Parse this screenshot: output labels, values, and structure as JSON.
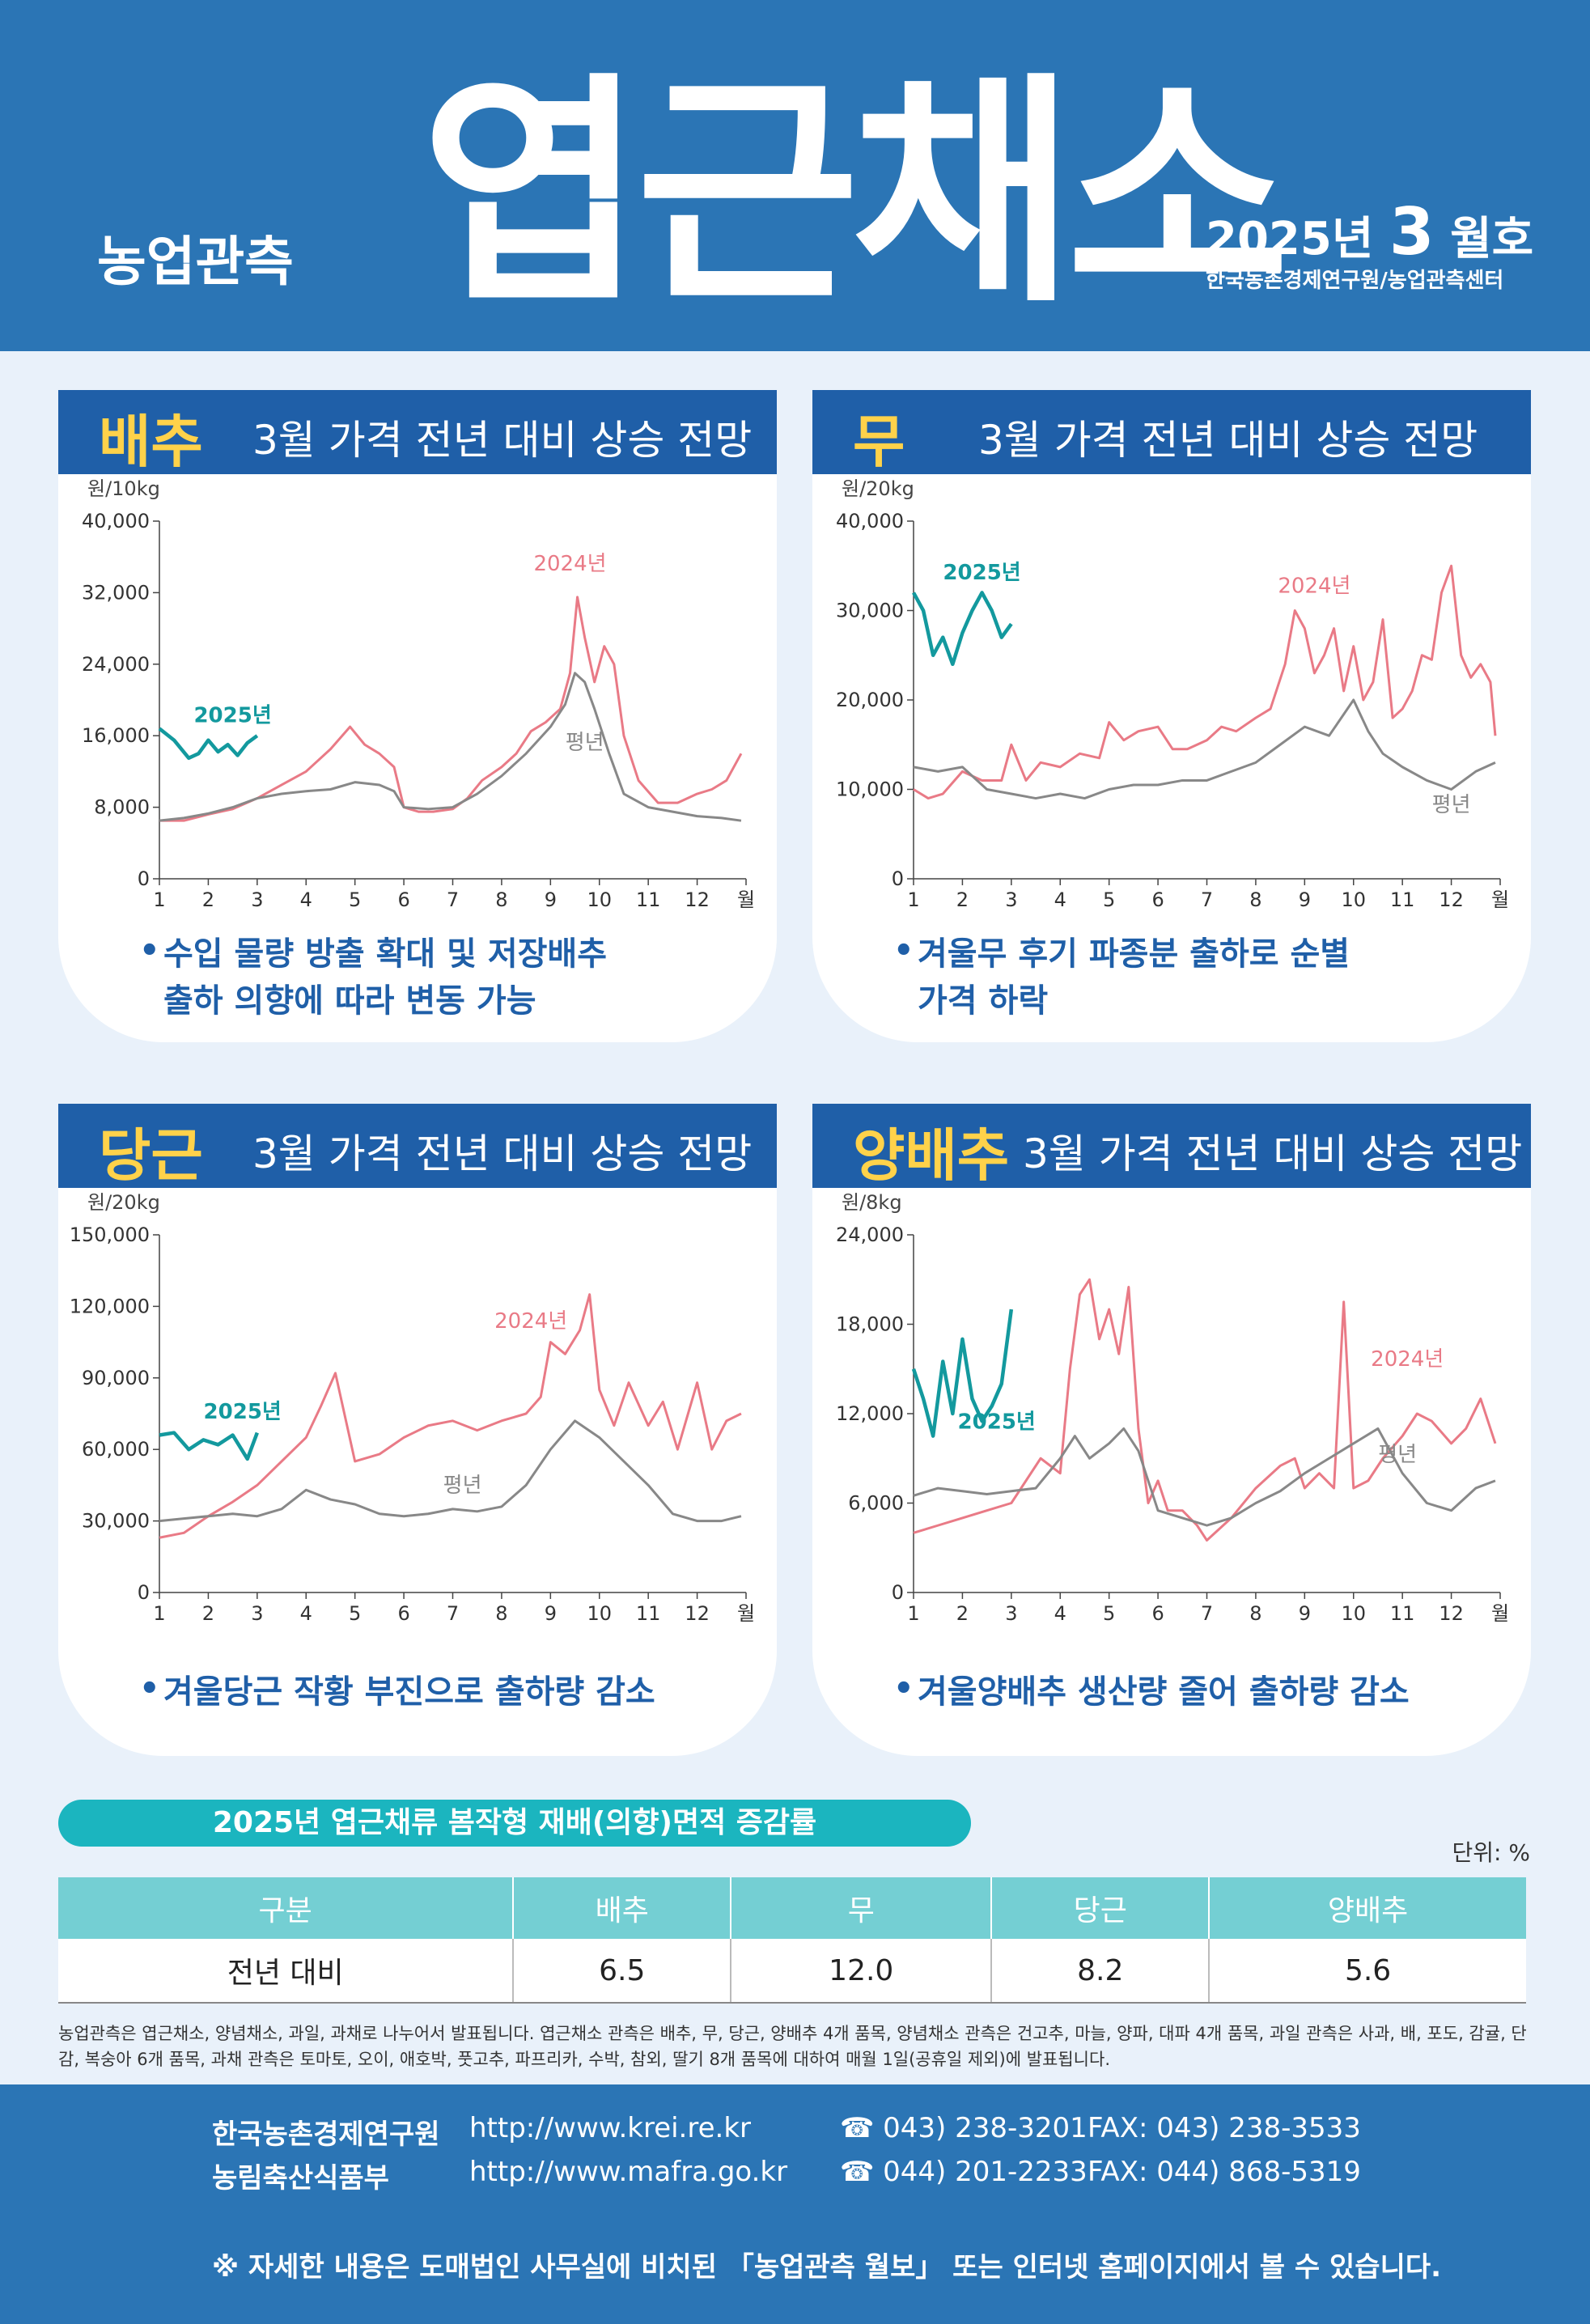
{
  "header": {
    "series": "농업관측",
    "title": "엽근채소",
    "issue_year": "2025년",
    "issue_month": "3",
    "issue_suffix": "월호",
    "org": "한국농촌경제연구원/농업관측센터"
  },
  "panels": [
    {
      "name": "배추",
      "headline": "3월 가격 전년 대비 상승 전망",
      "unit": "원/10kg",
      "note": "수입 물량 방출 확대 및 저장배추\n출하 의향에 따라 변동 가능"
    },
    {
      "name": "무",
      "headline": "3월 가격 전년 대비 상승 전망",
      "unit": "원/20kg",
      "note": "겨울무 후기 파종분 출하로 순별\n가격 하락"
    },
    {
      "name": "당근",
      "headline": "3월 가격 전년 대비 상승 전망",
      "unit": "원/20kg",
      "note": "겨울당근 작황 부진으로 출하량 감소"
    },
    {
      "name": "양배추",
      "headline": "3월 가격 전년 대비 상승 전망",
      "unit": "원/8kg",
      "note": "겨울양배추 생산량 줄어 출하량 감소"
    }
  ],
  "chart_data": [
    {
      "type": "line",
      "title": "배추",
      "ylabel": "원/10kg",
      "xlabel": "월",
      "x_ticks": [
        "1",
        "2",
        "3",
        "4",
        "5",
        "6",
        "7",
        "8",
        "9",
        "10",
        "11",
        "12",
        "월"
      ],
      "y_ticks": [
        "0",
        "8,000",
        "16,000",
        "24,000",
        "32,000",
        "40,000"
      ],
      "ylim": [
        0,
        40000
      ],
      "xlim": [
        1,
        13
      ],
      "series": [
        {
          "name": "2024년",
          "color": "#e97a86",
          "x": [
            1,
            1.5,
            2,
            2.5,
            3,
            3.5,
            4,
            4.5,
            4.9,
            5.2,
            5.5,
            5.8,
            6,
            6.3,
            6.6,
            7,
            7.3,
            7.6,
            8,
            8.3,
            8.6,
            8.9,
            9.2,
            9.4,
            9.55,
            9.7,
            9.9,
            10.1,
            10.3,
            10.5,
            10.8,
            11.2,
            11.6,
            12,
            12.3,
            12.6,
            12.9
          ],
          "y": [
            6500,
            6500,
            7200,
            7800,
            9000,
            10500,
            12000,
            14500,
            17000,
            15000,
            14000,
            12500,
            8000,
            7500,
            7500,
            7800,
            9000,
            11000,
            12500,
            14000,
            16500,
            17500,
            19000,
            23000,
            31500,
            27000,
            22000,
            26000,
            24000,
            16000,
            11000,
            8500,
            8500,
            9500,
            10000,
            11000,
            14000
          ]
        },
        {
          "name": "평년",
          "color": "#888888",
          "x": [
            1,
            1.5,
            2,
            2.5,
            3,
            3.5,
            4,
            4.5,
            5,
            5.5,
            5.8,
            6,
            6.5,
            7,
            7.5,
            8,
            8.5,
            9,
            9.3,
            9.5,
            9.7,
            9.9,
            10.2,
            10.5,
            11,
            11.5,
            12,
            12.5,
            12.9
          ],
          "y": [
            6500,
            6800,
            7300,
            8000,
            9000,
            9500,
            9800,
            10000,
            10800,
            10500,
            9800,
            8000,
            7800,
            8000,
            9500,
            11500,
            14000,
            17000,
            19500,
            23000,
            22000,
            19000,
            14000,
            9500,
            8000,
            7500,
            7000,
            6800,
            6500
          ]
        },
        {
          "name": "2025년",
          "color": "#13999e",
          "x": [
            1,
            1.3,
            1.6,
            1.8,
            2,
            2.2,
            2.4,
            2.6,
            2.8,
            3
          ],
          "y": [
            16800,
            15500,
            13500,
            14000,
            15500,
            14200,
            15000,
            13800,
            15200,
            16000
          ]
        }
      ],
      "annotations": [
        "2024년",
        "평년",
        "2025년"
      ]
    },
    {
      "type": "line",
      "title": "무",
      "ylabel": "원/20kg",
      "xlabel": "월",
      "x_ticks": [
        "1",
        "2",
        "3",
        "4",
        "5",
        "6",
        "7",
        "8",
        "9",
        "10",
        "11",
        "12",
        "월"
      ],
      "y_ticks": [
        "0",
        "10,000",
        "20,000",
        "30,000",
        "40,000"
      ],
      "ylim": [
        0,
        40000
      ],
      "xlim": [
        1,
        13
      ],
      "series": [
        {
          "name": "2024년",
          "color": "#e97a86",
          "x": [
            1,
            1.3,
            1.6,
            2,
            2.4,
            2.8,
            3,
            3.3,
            3.6,
            4,
            4.4,
            4.8,
            5,
            5.3,
            5.6,
            6,
            6.3,
            6.6,
            7,
            7.3,
            7.6,
            8,
            8.3,
            8.6,
            8.8,
            9,
            9.2,
            9.4,
            9.6,
            9.8,
            10,
            10.2,
            10.4,
            10.6,
            10.8,
            11,
            11.2,
            11.4,
            11.6,
            11.8,
            12,
            12.2,
            12.4,
            12.6,
            12.8,
            12.9
          ],
          "y": [
            10000,
            9000,
            9500,
            12000,
            11000,
            11000,
            15000,
            11000,
            13000,
            12500,
            14000,
            13500,
            17500,
            15500,
            16500,
            17000,
            14500,
            14500,
            15500,
            17000,
            16500,
            18000,
            19000,
            24000,
            30000,
            28000,
            23000,
            25000,
            28000,
            21000,
            26000,
            20000,
            22000,
            29000,
            18000,
            19000,
            21000,
            25000,
            24500,
            32000,
            35000,
            25000,
            22500,
            24000,
            22000,
            16000
          ]
        },
        {
          "name": "평년",
          "color": "#888888",
          "x": [
            1,
            1.5,
            2,
            2.5,
            3,
            3.5,
            4,
            4.5,
            5,
            5.5,
            6,
            6.5,
            7,
            7.5,
            8,
            8.5,
            9,
            9.5,
            10,
            10.3,
            10.6,
            11,
            11.5,
            12,
            12.5,
            12.9
          ],
          "y": [
            12500,
            12000,
            12500,
            10000,
            9500,
            9000,
            9500,
            9000,
            10000,
            10500,
            10500,
            11000,
            11000,
            12000,
            13000,
            15000,
            17000,
            16000,
            20000,
            16500,
            14000,
            12500,
            11000,
            10000,
            12000,
            13000
          ]
        },
        {
          "name": "2025년",
          "color": "#13999e",
          "x": [
            1,
            1.2,
            1.4,
            1.6,
            1.8,
            2,
            2.2,
            2.4,
            2.6,
            2.8,
            3
          ],
          "y": [
            32000,
            30000,
            25000,
            27000,
            24000,
            27500,
            30000,
            32000,
            30000,
            27000,
            28500
          ]
        }
      ],
      "annotations": [
        "2025년",
        "2024년",
        "평년"
      ]
    },
    {
      "type": "line",
      "title": "당근",
      "ylabel": "원/20kg",
      "xlabel": "월",
      "x_ticks": [
        "1",
        "2",
        "3",
        "4",
        "5",
        "6",
        "7",
        "8",
        "9",
        "10",
        "11",
        "12",
        "월"
      ],
      "y_ticks": [
        "0",
        "30,000",
        "60,000",
        "90,000",
        "120,000",
        "150,000"
      ],
      "ylim": [
        0,
        150000
      ],
      "xlim": [
        1,
        13
      ],
      "series": [
        {
          "name": "2024년",
          "color": "#e97a86",
          "x": [
            1,
            1.5,
            2,
            2.5,
            3,
            3.5,
            4,
            4.3,
            4.6,
            5,
            5.5,
            6,
            6.5,
            7,
            7.5,
            8,
            8.5,
            8.8,
            9,
            9.3,
            9.6,
            9.8,
            10,
            10.3,
            10.6,
            11,
            11.3,
            11.6,
            12,
            12.3,
            12.6,
            12.9
          ],
          "y": [
            23000,
            25000,
            32000,
            38000,
            45000,
            55000,
            65000,
            78000,
            92000,
            55000,
            58000,
            65000,
            70000,
            72000,
            68000,
            72000,
            75000,
            82000,
            105000,
            100000,
            110000,
            125000,
            85000,
            70000,
            88000,
            70000,
            80000,
            60000,
            88000,
            60000,
            72000,
            75000
          ]
        },
        {
          "name": "평년",
          "color": "#888888",
          "x": [
            1,
            1.5,
            2,
            2.5,
            3,
            3.5,
            4,
            4.5,
            5,
            5.5,
            6,
            6.5,
            7,
            7.5,
            8,
            8.5,
            9,
            9.5,
            10,
            10.5,
            11,
            11.5,
            12,
            12.5,
            12.9
          ],
          "y": [
            30000,
            31000,
            32000,
            33000,
            32000,
            35000,
            43000,
            39000,
            37000,
            33000,
            32000,
            33000,
            35000,
            34000,
            36000,
            45000,
            60000,
            72000,
            65000,
            55000,
            45000,
            33000,
            30000,
            30000,
            32000
          ]
        },
        {
          "name": "2025년",
          "color": "#13999e",
          "x": [
            1,
            1.3,
            1.6,
            1.9,
            2.2,
            2.5,
            2.8,
            3
          ],
          "y": [
            66000,
            67000,
            60000,
            64000,
            62000,
            66000,
            56000,
            67000
          ]
        }
      ],
      "annotations": [
        "2024년",
        "2025년",
        "평년"
      ]
    },
    {
      "type": "line",
      "title": "양배추",
      "ylabel": "원/8kg",
      "xlabel": "월",
      "x_ticks": [
        "1",
        "2",
        "3",
        "4",
        "5",
        "6",
        "7",
        "8",
        "9",
        "10",
        "11",
        "12",
        "월"
      ],
      "y_ticks": [
        "0",
        "6,000",
        "12,000",
        "18,000",
        "24,000"
      ],
      "ylim": [
        0,
        24000
      ],
      "xlim": [
        1,
        13
      ],
      "series": [
        {
          "name": "2024년",
          "color": "#e97a86",
          "x": [
            1,
            1.5,
            2,
            2.5,
            3,
            3.3,
            3.6,
            4,
            4.2,
            4.4,
            4.6,
            4.8,
            5,
            5.2,
            5.4,
            5.6,
            5.8,
            6,
            6.2,
            6.5,
            6.8,
            7,
            7.5,
            8,
            8.5,
            8.8,
            9,
            9.3,
            9.6,
            9.8,
            10,
            10.3,
            10.6,
            11,
            11.3,
            11.6,
            12,
            12.3,
            12.6,
            12.9
          ],
          "y": [
            4000,
            4500,
            5000,
            5500,
            6000,
            7500,
            9000,
            8000,
            15000,
            20000,
            21000,
            17000,
            19000,
            16000,
            20500,
            11000,
            6000,
            7500,
            5500,
            5500,
            4500,
            3500,
            5000,
            7000,
            8500,
            9000,
            7000,
            8000,
            7000,
            19500,
            7000,
            7500,
            9000,
            10500,
            12000,
            11500,
            10000,
            11000,
            13000,
            10000
          ]
        },
        {
          "name": "평년",
          "color": "#888888",
          "x": [
            1,
            1.5,
            2,
            2.5,
            3,
            3.5,
            4,
            4.3,
            4.6,
            5,
            5.3,
            5.6,
            6,
            6.5,
            7,
            7.5,
            8,
            8.5,
            9,
            9.5,
            10,
            10.5,
            11,
            11.5,
            12,
            12.5,
            12.9
          ],
          "y": [
            6500,
            7000,
            6800,
            6600,
            6800,
            7000,
            9000,
            10500,
            9000,
            10000,
            11000,
            9500,
            5500,
            5000,
            4500,
            5000,
            6000,
            6800,
            8000,
            9000,
            10000,
            11000,
            8000,
            6000,
            5500,
            7000,
            7500
          ]
        },
        {
          "name": "2025년",
          "color": "#13999e",
          "x": [
            1,
            1.2,
            1.4,
            1.6,
            1.8,
            2,
            2.2,
            2.4,
            2.6,
            2.8,
            3
          ],
          "y": [
            15000,
            13000,
            10500,
            15500,
            12000,
            17000,
            13000,
            11500,
            12500,
            14000,
            19000
          ]
        }
      ],
      "annotations": [
        "2024년",
        "2025년",
        "평년"
      ]
    }
  ],
  "table": {
    "title": "2025년 엽근채류 봄작형 재배(의향)면적 증감률",
    "unit": "단위: %",
    "headers": [
      "구분",
      "배추",
      "무",
      "당근",
      "양배추"
    ],
    "row": [
      "전년 대비",
      "6.5",
      "12.0",
      "8.2",
      "5.6"
    ]
  },
  "footnote": "농업관측은 엽근채소, 양념채소, 과일, 과채로 나누어서 발표됩니다. 엽근채소 관측은 배추, 무, 당근, 양배추 4개 품목, 양념채소 관측은 건고추, 마늘, 양파, 대파 4개 품목, 과일 관측은 사과, 배, 포도, 감귤, 단감, 복숭아 6개 품목, 과채 관측은 토마토, 오이, 애호박, 풋고추, 파프리카, 수박, 참외, 딸기 8개 품목에 대하여 매월 1일(공휴일 제외)에 발표됩니다.",
  "footer": {
    "org1": "한국농촌경제연구원",
    "url1": "http://www.krei.re.kr",
    "tel1": "☎ 043) 238-3201",
    "fax1": "FAX: 043) 238-3533",
    "org2": "농림축산식품부",
    "url2": "http://www.mafra.go.kr",
    "tel2": "☎ 044) 201-2233",
    "fax2": "FAX: 044) 868-5319",
    "notice": "※ 자세한 내용은 도매법인 사무실에 비치된 「농업관측 월보」 또는 인터넷 홈페이지에서 볼 수 있습니다."
  },
  "colors": {
    "header": "#2b75b5",
    "title_bar": "#1f5fa8",
    "accent_yellow": "#ffd24a",
    "teal": "#13999e",
    "pink": "#e97a86",
    "gray": "#888888"
  }
}
